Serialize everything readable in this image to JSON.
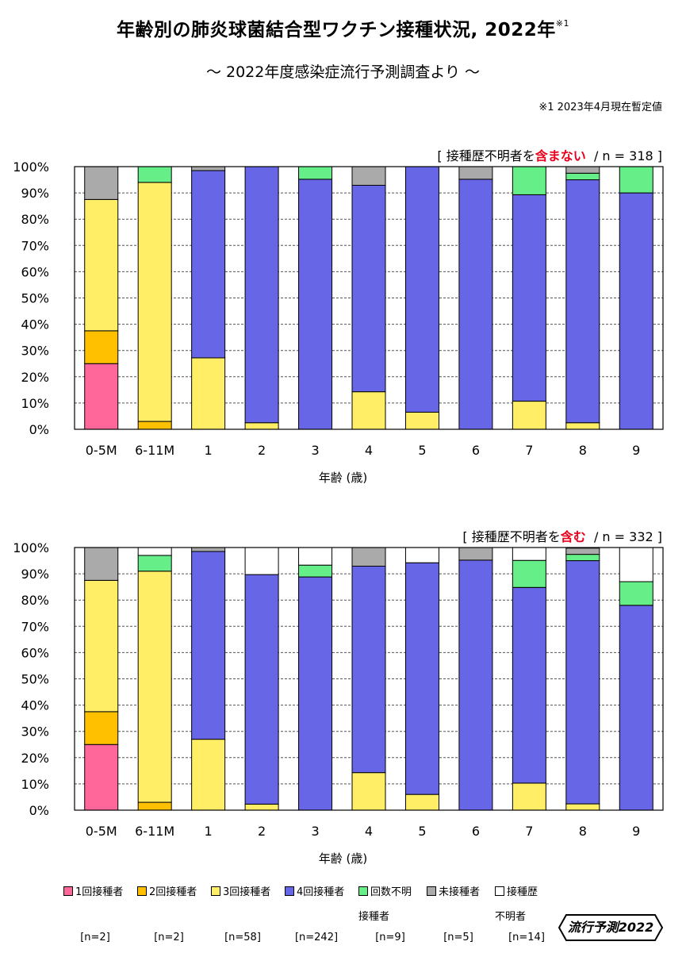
{
  "title": "年齢別の肺炎球菌結合型ワクチン接種状況, 2022年",
  "title_note_mark": "※1",
  "subtitle": "～ 2022年度感染症流行予測調査より ～",
  "footnote": "※1  2023年4月現在暫定値",
  "colors": {
    "dose1": "#ff6699",
    "dose2": "#ffc000",
    "dose3": "#ffee66",
    "dose4": "#6666e6",
    "unknown_count": "#66ee88",
    "unvaccinated": "#aaaaaa",
    "history_unknown": "#ffffff"
  },
  "chart_data": [
    {
      "type": "bar",
      "stacked": true,
      "note_prefix": "[ 接種歴不明者を",
      "note_highlight": "含まない",
      "note_suffix": "/ n = 318 ]",
      "xlabel": "年齢 (歳)",
      "ylabel": "",
      "ylim": [
        0,
        100
      ],
      "yticks": [
        "0%",
        "10%",
        "20%",
        "30%",
        "40%",
        "50%",
        "60%",
        "70%",
        "80%",
        "90%",
        "100%"
      ],
      "grid": true,
      "categories": [
        "0-5M",
        "6-11M",
        "1",
        "2",
        "3",
        "4",
        "5",
        "6",
        "7",
        "8",
        "9"
      ],
      "series": [
        {
          "key": "dose1",
          "name": "1回接種者",
          "values": [
            25,
            0,
            0,
            0,
            0,
            0,
            0,
            0,
            0,
            0,
            0
          ]
        },
        {
          "key": "dose2",
          "name": "2回接種者",
          "values": [
            12.5,
            3,
            0,
            0,
            0,
            0,
            0,
            0,
            0,
            0,
            0
          ]
        },
        {
          "key": "dose3",
          "name": "3回接種者",
          "values": [
            50,
            91,
            27.2,
            2.5,
            0,
            14.3,
            6.5,
            0,
            10.7,
            2.5,
            0
          ]
        },
        {
          "key": "dose4",
          "name": "4回接種者",
          "values": [
            0,
            0,
            71.3,
            97.5,
            95.2,
            78.6,
            93.5,
            95.2,
            78.6,
            92.5,
            90
          ]
        },
        {
          "key": "unknown_count",
          "name": "回数不明接種者",
          "values": [
            0,
            6,
            0,
            0,
            4.8,
            0,
            0,
            0,
            10.7,
            2.5,
            10
          ]
        },
        {
          "key": "unvaccinated",
          "name": "未接種者",
          "values": [
            12.5,
            0,
            1.5,
            0,
            0,
            7.1,
            0,
            4.8,
            0,
            2.5,
            0
          ]
        },
        {
          "key": "history_unknown",
          "name": "接種歴不明者",
          "values": [
            0,
            0,
            0,
            0,
            0,
            0,
            0,
            0,
            0,
            0,
            0
          ]
        }
      ]
    },
    {
      "type": "bar",
      "stacked": true,
      "note_prefix": "[ 接種歴不明者を",
      "note_highlight": "含む",
      "note_suffix": "/ n = 332 ]",
      "xlabel": "年齢 (歳)",
      "ylabel": "",
      "ylim": [
        0,
        100
      ],
      "yticks": [
        "0%",
        "10%",
        "20%",
        "30%",
        "40%",
        "50%",
        "60%",
        "70%",
        "80%",
        "90%",
        "100%"
      ],
      "grid": true,
      "categories": [
        "0-5M",
        "6-11M",
        "1",
        "2",
        "3",
        "4",
        "5",
        "6",
        "7",
        "8",
        "9"
      ],
      "series": [
        {
          "key": "dose1",
          "name": "1回接種者",
          "values": [
            25,
            0,
            0,
            0,
            0,
            0,
            0,
            0,
            0,
            0,
            0
          ]
        },
        {
          "key": "dose2",
          "name": "2回接種者",
          "values": [
            12.5,
            3,
            0,
            0,
            0,
            0,
            0,
            0,
            0,
            0,
            0
          ]
        },
        {
          "key": "dose3",
          "name": "3回接種者",
          "values": [
            50,
            88,
            27,
            2.3,
            0,
            14.3,
            6,
            0,
            10.3,
            2.4,
            0
          ]
        },
        {
          "key": "dose4",
          "name": "4回接種者",
          "values": [
            0,
            0,
            71.5,
            87.4,
            88.8,
            78.6,
            88.2,
            95.2,
            74.5,
            92.6,
            78
          ]
        },
        {
          "key": "unknown_count",
          "name": "回数不明接種者",
          "values": [
            0,
            6,
            0,
            0,
            4.5,
            0,
            0,
            0,
            10.3,
            2.4,
            9
          ]
        },
        {
          "key": "unvaccinated",
          "name": "未接種者",
          "values": [
            12.5,
            0,
            1.5,
            0,
            0,
            7.1,
            0,
            4.8,
            0,
            2.4,
            0
          ]
        },
        {
          "key": "history_unknown",
          "name": "接種歴不明者",
          "values": [
            0,
            3,
            0,
            10.3,
            6.7,
            0,
            5.8,
            0,
            4.9,
            0.2,
            13
          ]
        }
      ]
    }
  ],
  "legend": [
    {
      "key": "dose1",
      "line1": "1回接種者",
      "line2": "",
      "n": "[n=2]"
    },
    {
      "key": "dose2",
      "line1": "2回接種者",
      "line2": "",
      "n": "[n=2]"
    },
    {
      "key": "dose3",
      "line1": "3回接種者",
      "line2": "",
      "n": "[n=58]"
    },
    {
      "key": "dose4",
      "line1": "4回接種者",
      "line2": "",
      "n": "[n=242]"
    },
    {
      "key": "unknown_count",
      "line1": "回数不明",
      "line2": "接種者",
      "n": "[n=9]"
    },
    {
      "key": "unvaccinated",
      "line1": "未接種者",
      "line2": "",
      "n": "[n=5]"
    },
    {
      "key": "history_unknown",
      "line1": "接種歴",
      "line2": "不明者",
      "n": "[n=14]"
    }
  ],
  "logo": {
    "text": "流行予測2022"
  }
}
